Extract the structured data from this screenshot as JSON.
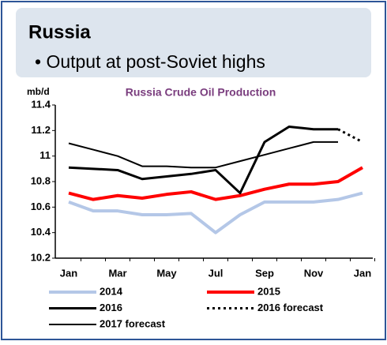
{
  "header": {
    "title": "Russia",
    "bullet": "• Output at post-Soviet highs"
  },
  "chart_data": {
    "type": "line",
    "title": "Russia Crude Oil Production",
    "title_color": "#7a3d7e",
    "y_label": "mb/d",
    "categories": [
      "Jan",
      null,
      "Mar",
      null,
      "May",
      null,
      "Jul",
      null,
      "Sep",
      null,
      "Nov",
      null,
      "Jan"
    ],
    "ylim": [
      10.2,
      11.4
    ],
    "yticks": [
      10.2,
      10.4,
      10.6,
      10.8,
      11.0,
      11.2,
      11.4
    ],
    "grid": false,
    "series": [
      {
        "name": "2014",
        "color": "#b4c7e7",
        "width": 4,
        "style": "solid",
        "values": [
          10.64,
          10.57,
          10.57,
          10.54,
          10.54,
          10.55,
          10.4,
          10.54,
          10.64,
          10.64,
          10.64,
          10.66,
          10.71
        ]
      },
      {
        "name": "2015",
        "color": "#ff0000",
        "width": 4,
        "style": "solid",
        "values": [
          10.71,
          10.66,
          10.69,
          10.67,
          10.7,
          10.72,
          10.66,
          10.69,
          10.74,
          10.78,
          10.78,
          10.8,
          10.91
        ]
      },
      {
        "name": "2016",
        "color": "#000000",
        "width": 3,
        "style": "solid",
        "values": [
          10.91,
          10.9,
          10.89,
          10.82,
          10.84,
          10.86,
          10.89,
          10.71,
          11.11,
          11.23,
          11.21,
          11.21,
          null
        ]
      },
      {
        "name": "2016 forecast",
        "color": "#000000",
        "width": 3,
        "style": "dotted",
        "values": [
          null,
          null,
          null,
          null,
          null,
          null,
          null,
          null,
          null,
          null,
          null,
          11.21,
          11.11
        ]
      },
      {
        "name": "2017 forecast",
        "color": "#000000",
        "width": 2,
        "style": "solid",
        "values": [
          11.1,
          11.05,
          11.0,
          10.92,
          10.92,
          10.91,
          10.91,
          10.96,
          11.01,
          11.06,
          11.11,
          11.11,
          null
        ]
      }
    ]
  }
}
